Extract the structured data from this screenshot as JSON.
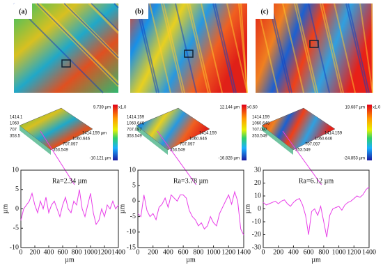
{
  "chart_data": [
    {
      "type": "line",
      "panel_label": "(a)",
      "annotation": "Ra=2.34 µm",
      "x_label": "µm",
      "y_label": "µm",
      "surface": {
        "colorbar_max": "9.739 µm",
        "colorbar_min": "-10.121 µm",
        "colorbar_scale": "x1.0",
        "axis_labels": [
          "1414.1",
          "1060",
          "707",
          "353.5",
          "353.549",
          "707.097",
          "1060.646",
          "1414.159 µm"
        ]
      },
      "x": [
        0,
        40,
        80,
        120,
        160,
        200,
        240,
        280,
        320,
        360,
        400,
        440,
        480,
        520,
        560,
        600,
        640,
        680,
        720,
        760,
        800,
        840,
        880,
        920,
        960,
        1000,
        1040,
        1080,
        1120,
        1160,
        1200,
        1240,
        1280,
        1320,
        1360,
        1400
      ],
      "series": [
        {
          "color": "#e83ee8",
          "values": [
            -3,
            0,
            1,
            2,
            4,
            1,
            -1,
            2,
            0,
            3,
            -1,
            1,
            2,
            0,
            -2,
            1,
            3,
            0,
            -1,
            2,
            1,
            5,
            0,
            -2,
            1,
            4,
            -1,
            -4,
            -3,
            0,
            -2,
            1,
            0,
            2,
            0,
            1
          ]
        }
      ],
      "xlim": [
        0,
        1400
      ],
      "xticks": [
        0,
        200,
        400,
        600,
        800,
        1000,
        1200,
        1400
      ],
      "ylim": [
        -10,
        10
      ],
      "yticks": [
        -10,
        -5,
        0,
        5,
        10
      ]
    },
    {
      "type": "line",
      "panel_label": "(b)",
      "annotation": "Ra=3.78 µm",
      "x_label": "µm",
      "y_label": "µm",
      "surface": {
        "colorbar_max": "12.144 µm",
        "colorbar_min": "-16.828 µm",
        "colorbar_scale": "x0.50",
        "axis_labels": [
          "1414.159",
          "1060.646",
          "707.097",
          "353.549",
          "353.549",
          "707.097",
          "1060.646",
          "1414.159"
        ]
      },
      "x": [
        0,
        40,
        80,
        120,
        160,
        200,
        240,
        280,
        320,
        360,
        400,
        440,
        480,
        520,
        560,
        600,
        640,
        680,
        720,
        760,
        800,
        840,
        880,
        920,
        960,
        1000,
        1040,
        1080,
        1120,
        1160,
        1200,
        1240,
        1280,
        1320,
        1360,
        1400
      ],
      "series": [
        {
          "color": "#e83ee8",
          "values": [
            -4,
            -5,
            2,
            -3,
            -5,
            -4,
            -6,
            -2,
            -1,
            1,
            -2,
            2,
            1,
            0,
            2,
            2,
            1,
            -3,
            -5,
            -6,
            -8,
            -7,
            -9,
            -8,
            -5,
            -7,
            -8,
            -4,
            -2,
            0,
            2,
            -1,
            3,
            0,
            -9,
            -11
          ]
        }
      ],
      "xlim": [
        0,
        1400
      ],
      "xticks": [
        0,
        200,
        400,
        600,
        800,
        1000,
        1200,
        1400
      ],
      "ylim": [
        -15,
        10
      ],
      "yticks": [
        -15,
        -10,
        -5,
        0,
        5,
        10
      ]
    },
    {
      "type": "line",
      "panel_label": "(c)",
      "annotation": "Ra=6.12 µm",
      "x_label": "µm",
      "y_label": "µm",
      "surface": {
        "colorbar_max": "19.687 µm",
        "colorbar_min": "-24.853 µm",
        "colorbar_scale": "x1.0",
        "axis_labels": [
          "1414.159",
          "1060.646",
          "707.097",
          "353.549",
          "353.549",
          "707.097",
          "1060.646",
          "1414.159"
        ]
      },
      "x": [
        0,
        40,
        80,
        120,
        160,
        200,
        240,
        280,
        320,
        360,
        400,
        440,
        480,
        520,
        560,
        600,
        640,
        680,
        720,
        760,
        800,
        840,
        880,
        920,
        960,
        1000,
        1040,
        1080,
        1120,
        1160,
        1200,
        1240,
        1280,
        1320,
        1360,
        1400
      ],
      "series": [
        {
          "color": "#e83ee8",
          "values": [
            5,
            3,
            4,
            5,
            6,
            4,
            6,
            7,
            4,
            2,
            5,
            7,
            8,
            3,
            -5,
            -20,
            -2,
            0,
            -5,
            2,
            -10,
            -22,
            -5,
            0,
            1,
            2,
            -1,
            3,
            5,
            6,
            8,
            10,
            9,
            11,
            15,
            17
          ]
        }
      ],
      "xlim": [
        0,
        1400
      ],
      "xticks": [
        0,
        200,
        400,
        600,
        800,
        1000,
        1200,
        1400
      ],
      "ylim": [
        -30,
        30
      ],
      "yticks": [
        -30,
        -20,
        -10,
        0,
        10,
        20,
        30
      ]
    }
  ]
}
